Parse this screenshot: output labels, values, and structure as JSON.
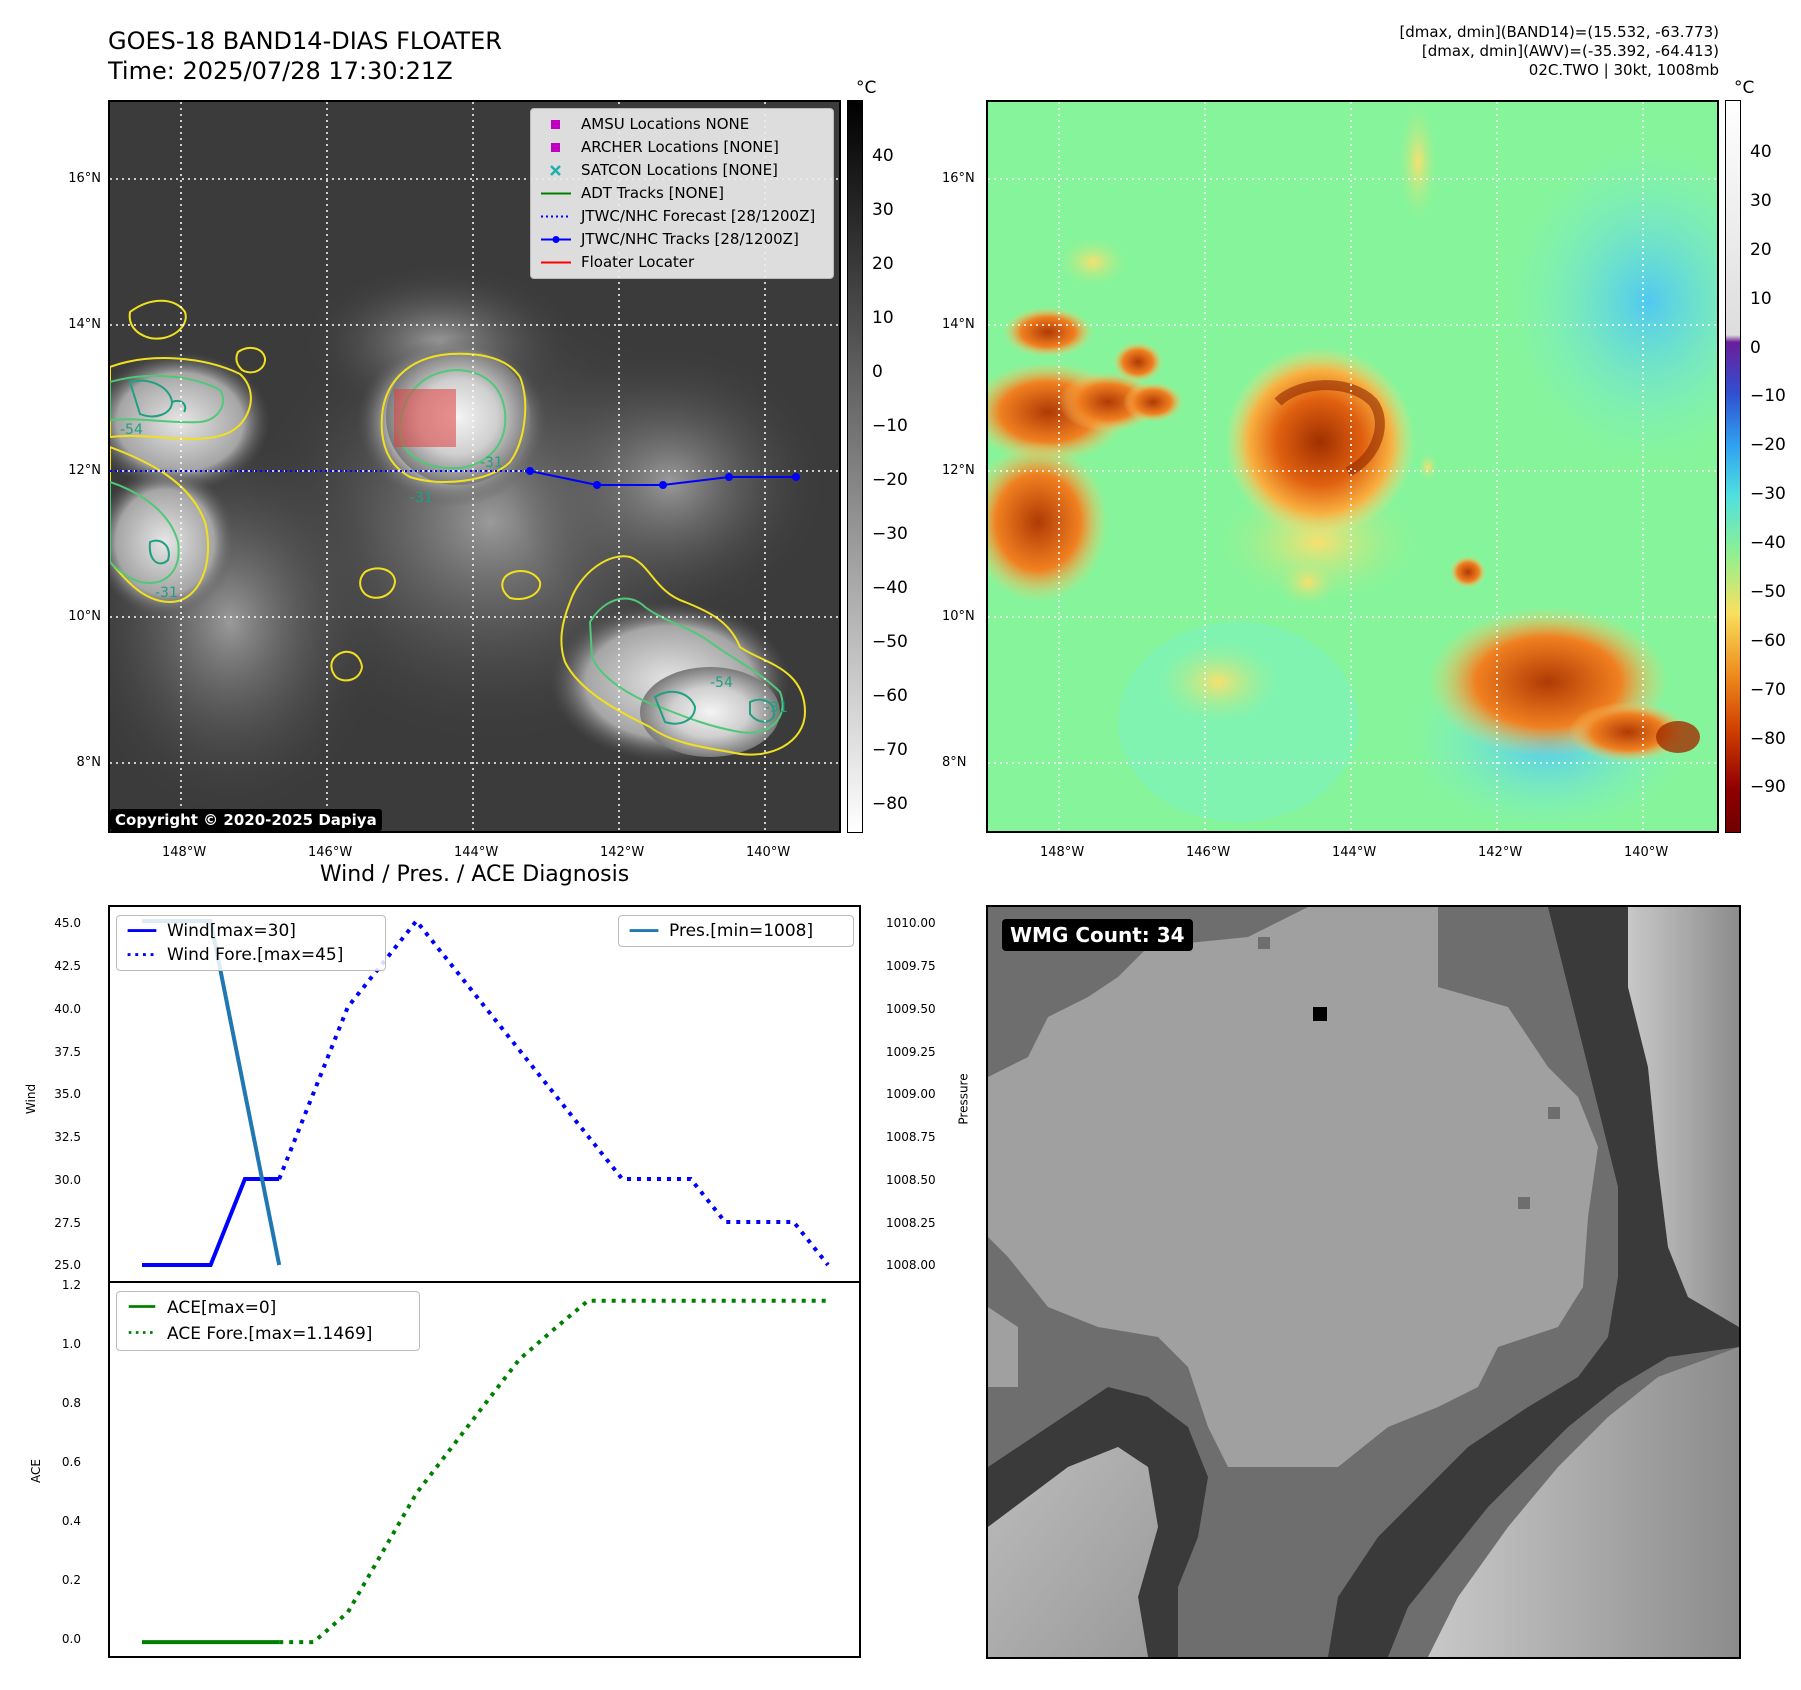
{
  "header": {
    "title_line1": "GOES-18 BAND14-DIAS FLOATER",
    "title_line2": "Time: 2025/07/28 17:30:21Z",
    "stats_line1": "[dmax, dmin](BAND14)=(15.532, -63.773)",
    "stats_line2": "[dmax, dmin](AWV)=(-35.392, -64.413)",
    "stats_line3": "02C.TWO | 30kt, 1008mb"
  },
  "map_axes": {
    "lon_labels": [
      "148°W",
      "146°W",
      "144°W",
      "142°W",
      "140°W"
    ],
    "lat_labels": [
      "16°N",
      "14°N",
      "12°N",
      "10°N",
      "8°N"
    ]
  },
  "ir_panel": {
    "legend": [
      {
        "label": "AMSU Locations NONE",
        "marker": "square",
        "color": "#c000c0"
      },
      {
        "label": "ARCHER Locations [NONE]",
        "marker": "square",
        "color": "#c000c0"
      },
      {
        "label": "SATCON Locations [NONE]",
        "marker": "x",
        "color": "#20b0b0"
      },
      {
        "label": "ADT Tracks [NONE]",
        "marker": "line",
        "color": "#008000"
      },
      {
        "label": "JTWC/NHC Forecast [28/1200Z]",
        "marker": "dotted",
        "color": "#0000ff"
      },
      {
        "label": "JTWC/NHC Tracks [28/1200Z]",
        "marker": "line-dot",
        "color": "#0000ff"
      },
      {
        "label": "Floater Locater",
        "marker": "line",
        "color": "#ff0000"
      }
    ],
    "contour_labels": [
      "-54",
      "-31",
      "-31",
      "-31",
      "-54",
      "-31"
    ],
    "copyright": "Copyright © 2020-2025 Dapiya",
    "colorbar": {
      "unit": "°C",
      "ticks": [
        "40",
        "30",
        "20",
        "10",
        "0",
        "−10",
        "−20",
        "−30",
        "−40",
        "−50",
        "−60",
        "−70",
        "−80"
      ]
    }
  },
  "awv_panel": {
    "colorbar": {
      "unit": "°C",
      "ticks": [
        "40",
        "30",
        "20",
        "10",
        "0",
        "−10",
        "−20",
        "−30",
        "−40",
        "−50",
        "−60",
        "−70",
        "−80",
        "−90"
      ]
    }
  },
  "diag_panel": {
    "title": "Wind / Pres. / ACE Diagnosis",
    "wind_ylabel": "Wind",
    "pres_ylabel": "Pressure",
    "ace_ylabel": "ACE",
    "wind_ticks": [
      "45.0",
      "42.5",
      "40.0",
      "37.5",
      "35.0",
      "32.5",
      "30.0",
      "27.5",
      "25.0"
    ],
    "pres_ticks": [
      "1010.00",
      "1009.75",
      "1009.50",
      "1009.25",
      "1009.00",
      "1008.75",
      "1008.50",
      "1008.25",
      "1008.00"
    ],
    "ace_ticks": [
      "1.2",
      "1.0",
      "0.8",
      "0.6",
      "0.4",
      "0.2",
      "0.0"
    ],
    "legend_wind": [
      "Wind[max=30]",
      "Wind Fore.[max=45]"
    ],
    "legend_pres": [
      "Pres.[min=1008]"
    ],
    "legend_ace": [
      "ACE[max=0]",
      "ACE Fore.[max=1.1469]"
    ]
  },
  "wmg_panel": {
    "label": "WMG Count: 34"
  },
  "chart_data": [
    {
      "type": "line",
      "title": "Wind / Pres. / ACE Diagnosis",
      "ylabel": "Wind",
      "ylim": [
        25.0,
        45.0
      ],
      "series": [
        {
          "name": "Wind[max=30]",
          "color": "#0000ff",
          "style": "solid",
          "x": [
            0,
            1,
            2,
            3,
            4
          ],
          "y": [
            25,
            25,
            25,
            30,
            30
          ]
        },
        {
          "name": "Wind Fore.[max=45]",
          "color": "#0000ff",
          "style": "dotted",
          "x": [
            4,
            5,
            6,
            7,
            8,
            9,
            10,
            11,
            12,
            13,
            14,
            15,
            16,
            17,
            18,
            19,
            20
          ],
          "y": [
            30,
            35,
            40,
            42.5,
            45,
            42.5,
            40,
            37.5,
            35,
            32.5,
            30,
            30,
            30,
            27.5,
            27.5,
            27.5,
            25
          ]
        }
      ]
    },
    {
      "type": "line",
      "ylabel": "Pressure",
      "ylim": [
        1008.0,
        1010.0
      ],
      "series": [
        {
          "name": "Pres.[min=1008]",
          "color": "#1f77b4",
          "style": "solid",
          "x": [
            0,
            2,
            4
          ],
          "y": [
            1010.0,
            1010.0,
            1008.0
          ]
        }
      ]
    },
    {
      "type": "line",
      "ylabel": "ACE",
      "ylim": [
        -0.05,
        1.2
      ],
      "series": [
        {
          "name": "ACE[max=0]",
          "color": "#008000",
          "style": "solid",
          "x": [
            0,
            4
          ],
          "y": [
            0,
            0
          ]
        },
        {
          "name": "ACE Fore.[max=1.1469]",
          "color": "#008000",
          "style": "dotted",
          "x": [
            4,
            5,
            6,
            7,
            8,
            9,
            10,
            11,
            12,
            13,
            14,
            15,
            16,
            17,
            18,
            19,
            20
          ],
          "y": [
            0,
            0,
            0.1,
            0.3,
            0.5,
            0.65,
            0.8,
            0.95,
            1.05,
            1.1469,
            1.1469,
            1.1469,
            1.1469,
            1.1469,
            1.1469,
            1.1469,
            1.1469
          ]
        }
      ]
    }
  ],
  "colors": {
    "ir_background": "#3a3a3a",
    "awv_background": "#7dfa9a",
    "contour_yellow": "#f0e020",
    "contour_green": "#50c878",
    "forecast_blue": "#0000ff",
    "floater_red": "#e04040"
  }
}
